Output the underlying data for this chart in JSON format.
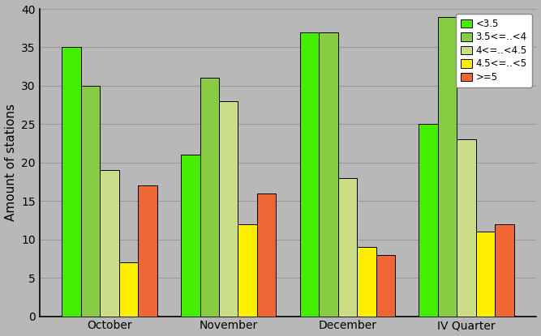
{
  "categories": [
    "October",
    "November",
    "December",
    "IV Quarter"
  ],
  "series": [
    {
      "label": "<3.5",
      "values": [
        35,
        21,
        37,
        25
      ],
      "color": "#44ee00"
    },
    {
      "label": "3.5<=..<4",
      "values": [
        30,
        31,
        37,
        39
      ],
      "color": "#88cc44"
    },
    {
      "label": "4<=..<4.5",
      "values": [
        19,
        28,
        18,
        23
      ],
      "color": "#ccdd88"
    },
    {
      "label": "4.5<=..<5",
      "values": [
        7,
        12,
        9,
        11
      ],
      "color": "#ffee00"
    },
    {
      "label": ">=5",
      "values": [
        17,
        16,
        8,
        12
      ],
      "color": "#ee6633"
    }
  ],
  "ylabel": "Amount of stations",
  "ylim": [
    0,
    40
  ],
  "yticks": [
    0,
    5,
    10,
    15,
    20,
    25,
    30,
    35,
    40
  ],
  "background_color": "#b8b8b8",
  "plot_bg_color": "#b8b8b8",
  "grid_color": "#999999",
  "bar_width": 0.16,
  "legend_fontsize": 8.5,
  "axis_label_fontsize": 11,
  "tick_fontsize": 10,
  "bar_edge_color": "#000000",
  "bar_edge_width": 0.7
}
